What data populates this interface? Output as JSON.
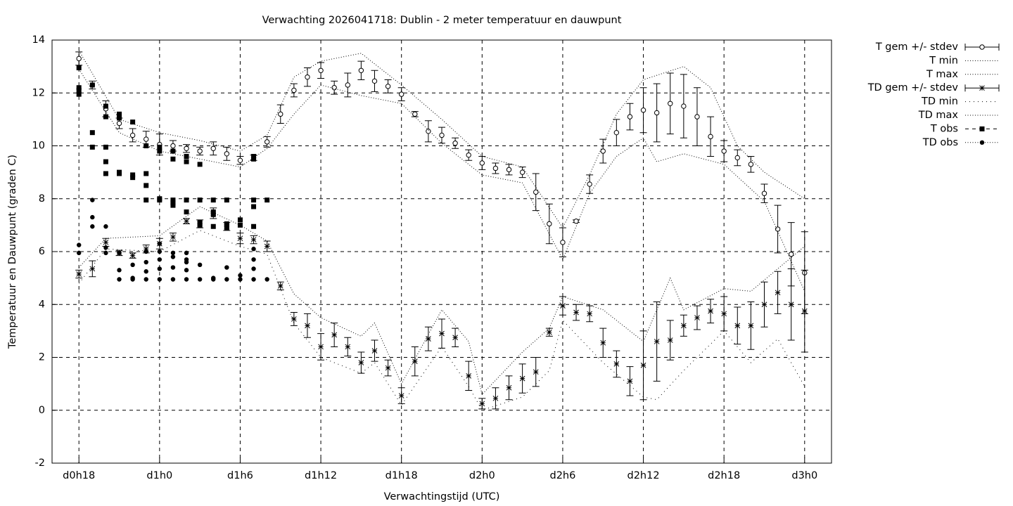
{
  "chart_data": {
    "type": "errorbar",
    "title": "Verwachting 2026041718: Dublin - 2 meter temperatuur en dauwpunt",
    "xlabel": "Verwachtingstijd (UTC)",
    "ylabel": "Temperatuur en Dauwpunt (graden C)",
    "xlim": [
      16,
      74
    ],
    "ylim": [
      -2,
      14
    ],
    "xticks": [
      {
        "value": 18,
        "label": "d0h18"
      },
      {
        "value": 24,
        "label": "d1h0"
      },
      {
        "value": 30,
        "label": "d1h6"
      },
      {
        "value": 36,
        "label": "d1h12"
      },
      {
        "value": 42,
        "label": "d1h18"
      },
      {
        "value": 48,
        "label": "d2h0"
      },
      {
        "value": 54,
        "label": "d2h6"
      },
      {
        "value": 60,
        "label": "d2h12"
      },
      {
        "value": 66,
        "label": "d2h18"
      },
      {
        "value": 72,
        "label": "d3h0"
      }
    ],
    "yticks": [
      -2,
      0,
      2,
      4,
      6,
      8,
      10,
      12,
      14
    ],
    "grid": true,
    "series": [
      {
        "name": "T gem +/- stdev",
        "style": "errorbar-circle",
        "color": "#000000",
        "x": [
          18,
          19,
          20,
          21,
          22,
          23,
          24,
          25,
          26,
          27,
          28,
          29,
          30,
          31,
          32,
          33,
          34,
          35,
          36,
          37,
          38,
          39,
          40,
          41,
          42,
          43,
          44,
          45,
          46,
          47,
          48,
          49,
          50,
          51,
          52,
          53,
          54,
          55,
          56,
          57,
          58,
          59,
          60,
          61,
          62,
          63,
          64,
          65,
          66,
          67,
          68,
          69,
          70,
          71,
          72
        ],
        "values": [
          13.3,
          12.3,
          11.4,
          10.85,
          10.4,
          10.25,
          10.05,
          10.0,
          9.9,
          9.8,
          9.9,
          9.7,
          9.45,
          9.55,
          10.15,
          11.2,
          12.1,
          12.6,
          12.85,
          12.2,
          12.3,
          12.85,
          12.45,
          12.25,
          11.95,
          11.2,
          10.55,
          10.4,
          10.1,
          9.65,
          9.35,
          9.15,
          9.1,
          9.0,
          8.25,
          7.05,
          6.35,
          7.15,
          8.55,
          9.8,
          10.5,
          11.1,
          11.35,
          11.25,
          11.6,
          11.5,
          11.1,
          10.35,
          9.8,
          9.55,
          9.3,
          8.2,
          6.85,
          5.9,
          5.2
        ],
        "stdev": [
          0.25,
          0.15,
          0.3,
          0.2,
          0.25,
          0.3,
          0.4,
          0.2,
          0.15,
          0.15,
          0.25,
          0.25,
          0.15,
          0.1,
          0.2,
          0.35,
          0.25,
          0.35,
          0.3,
          0.25,
          0.45,
          0.35,
          0.4,
          0.25,
          0.25,
          0.1,
          0.4,
          0.3,
          0.2,
          0.2,
          0.25,
          0.2,
          0.2,
          0.2,
          0.7,
          0.75,
          0.55,
          0.05,
          0.35,
          0.45,
          0.5,
          0.5,
          0.85,
          1.1,
          1.15,
          1.2,
          1.1,
          0.75,
          0.4,
          0.3,
          0.3,
          0.35,
          0.9,
          1.2,
          1.55
        ]
      },
      {
        "name": "T min",
        "style": "dotted",
        "color": "#000000",
        "x": [
          18,
          21,
          24,
          27,
          30,
          32,
          34,
          36,
          39,
          42,
          45,
          48,
          51,
          54,
          56,
          58,
          60,
          61,
          63,
          66,
          69,
          72
        ],
        "values": [
          12.9,
          10.5,
          9.8,
          9.5,
          9.2,
          9.9,
          11.2,
          12.3,
          11.9,
          11.6,
          10.1,
          8.9,
          8.6,
          5.7,
          8.2,
          9.6,
          10.3,
          9.4,
          9.7,
          9.3,
          7.9,
          4.5
        ]
      },
      {
        "name": "T max",
        "style": "dotted",
        "color": "#000000",
        "x": [
          18,
          21,
          24,
          27,
          30,
          32,
          34,
          36,
          39,
          42,
          45,
          48,
          51,
          54,
          56,
          58,
          60,
          63,
          65,
          67,
          69,
          72
        ],
        "values": [
          13.6,
          11.0,
          10.5,
          10.2,
          9.8,
          10.4,
          12.6,
          13.2,
          13.5,
          12.3,
          11.0,
          9.6,
          9.2,
          6.9,
          8.9,
          11.2,
          12.5,
          13.0,
          12.2,
          10.0,
          9.0,
          8.0
        ]
      },
      {
        "name": "TD gem +/- stdev",
        "style": "errorbar-star",
        "color": "#000000",
        "x": [
          18,
          19,
          20,
          21,
          22,
          23,
          24,
          25,
          26,
          27,
          28,
          29,
          30,
          31,
          32,
          33,
          34,
          35,
          36,
          37,
          38,
          39,
          40,
          41,
          42,
          43,
          44,
          45,
          46,
          47,
          48,
          49,
          50,
          51,
          52,
          53,
          54,
          55,
          56,
          57,
          58,
          59,
          60,
          61,
          62,
          63,
          64,
          65,
          66,
          67,
          68,
          69,
          70,
          71,
          72
        ],
        "values": [
          5.15,
          5.35,
          6.35,
          5.95,
          5.85,
          6.1,
          6.3,
          6.55,
          7.15,
          7.05,
          7.45,
          6.95,
          6.5,
          6.45,
          6.2,
          4.7,
          3.45,
          3.2,
          2.4,
          2.85,
          2.4,
          1.8,
          2.25,
          1.6,
          0.55,
          1.85,
          2.7,
          2.9,
          2.75,
          1.3,
          0.25,
          0.45,
          0.85,
          1.2,
          1.45,
          2.95,
          3.95,
          3.7,
          3.65,
          2.55,
          1.75,
          1.1,
          1.7,
          2.6,
          2.65,
          3.2,
          3.5,
          3.75,
          3.65,
          3.2,
          3.2,
          4.0,
          4.45,
          4.0,
          3.75
        ],
        "stdev": [
          0.15,
          0.3,
          0.15,
          0.1,
          0.1,
          0.15,
          0.2,
          0.15,
          0.1,
          0.15,
          0.2,
          0.15,
          0.2,
          0.15,
          0.2,
          0.15,
          0.25,
          0.45,
          0.5,
          0.45,
          0.35,
          0.4,
          0.4,
          0.3,
          0.3,
          0.55,
          0.45,
          0.55,
          0.35,
          0.55,
          0.2,
          0.4,
          0.45,
          0.55,
          0.55,
          0.15,
          0.35,
          0.3,
          0.3,
          0.55,
          0.5,
          0.55,
          1.3,
          1.5,
          0.75,
          0.4,
          0.45,
          0.45,
          0.65,
          0.7,
          0.9,
          0.85,
          0.8,
          1.35,
          1.55
        ]
      },
      {
        "name": "TD min",
        "style": "dotted-sparse",
        "color": "#000000",
        "x": [
          18,
          20,
          24,
          27,
          30,
          32,
          34,
          36,
          39,
          40,
          42,
          45,
          47,
          48,
          51,
          53,
          54,
          57,
          60,
          61,
          63,
          66,
          68,
          70,
          72
        ],
        "values": [
          4.8,
          6.1,
          6.0,
          6.8,
          6.2,
          5.9,
          3.3,
          2.0,
          1.4,
          1.8,
          0.2,
          2.4,
          0.9,
          0.0,
          0.5,
          1.5,
          3.4,
          1.8,
          0.5,
          0.4,
          1.5,
          3.0,
          1.8,
          2.7,
          0.9
        ]
      },
      {
        "name": "TD max",
        "style": "dotted",
        "color": "#000000",
        "x": [
          18,
          20,
          24,
          27,
          30,
          32,
          34,
          36,
          39,
          40,
          42,
          45,
          47,
          48,
          51,
          53,
          54,
          57,
          60,
          62,
          63,
          66,
          68,
          72
        ],
        "values": [
          5.4,
          6.5,
          6.6,
          7.7,
          7.0,
          6.4,
          4.4,
          3.5,
          2.8,
          3.3,
          1.0,
          3.8,
          2.6,
          0.6,
          2.2,
          3.1,
          4.3,
          3.8,
          2.6,
          5.0,
          3.8,
          4.6,
          4.5,
          6.2
        ]
      },
      {
        "name": "T obs",
        "style": "square",
        "color": "#000000",
        "x": [
          18,
          18,
          18,
          18,
          19,
          19,
          19,
          20,
          20,
          20,
          20,
          20,
          21,
          21,
          21,
          21,
          22,
          22,
          22,
          23,
          23,
          23,
          23,
          24,
          24,
          24,
          24,
          25,
          25,
          25,
          25,
          25,
          26,
          26,
          26,
          26,
          27,
          27,
          27,
          27,
          28,
          28,
          28,
          28,
          29,
          29,
          29,
          29,
          30,
          30,
          31,
          31,
          31,
          31,
          31,
          32
        ],
        "values": [
          12.95,
          12.2,
          12.1,
          11.95,
          12.3,
          10.5,
          9.95,
          11.5,
          11.1,
          9.95,
          9.4,
          8.95,
          11.2,
          11.05,
          9.0,
          8.95,
          10.9,
          8.9,
          8.8,
          10.0,
          8.95,
          8.5,
          7.95,
          9.95,
          9.8,
          8.0,
          7.95,
          9.8,
          9.5,
          7.95,
          7.85,
          7.75,
          9.6,
          9.4,
          7.95,
          7.5,
          9.3,
          7.95,
          7.1,
          7.0,
          7.95,
          7.5,
          7.4,
          6.95,
          7.95,
          7.05,
          7.0,
          6.9,
          7.2,
          7.0,
          9.6,
          9.5,
          7.95,
          7.7,
          6.95,
          7.95
        ]
      },
      {
        "name": "TD obs",
        "style": "dot",
        "color": "#000000",
        "x": [
          18,
          18,
          19,
          19,
          19,
          20,
          20,
          20,
          21,
          21,
          21,
          22,
          22,
          22,
          23,
          23,
          23,
          23,
          24,
          24,
          24,
          24,
          24,
          25,
          25,
          25,
          25,
          26,
          26,
          26,
          26,
          26,
          27,
          27,
          28,
          28,
          29,
          29,
          30,
          30,
          31,
          31,
          31,
          31,
          32
        ],
        "values": [
          6.25,
          5.95,
          7.95,
          7.3,
          6.95,
          6.95,
          6.15,
          5.95,
          5.95,
          5.3,
          4.95,
          5.5,
          5.0,
          4.95,
          6.0,
          5.6,
          5.25,
          4.95,
          6.3,
          6.0,
          5.7,
          5.35,
          4.95,
          5.95,
          5.8,
          5.4,
          4.95,
          5.95,
          5.7,
          5.6,
          5.3,
          4.95,
          5.5,
          4.95,
          5.0,
          4.95,
          5.4,
          4.95,
          5.1,
          4.95,
          6.1,
          5.7,
          5.35,
          4.95,
          4.95
        ]
      }
    ]
  }
}
